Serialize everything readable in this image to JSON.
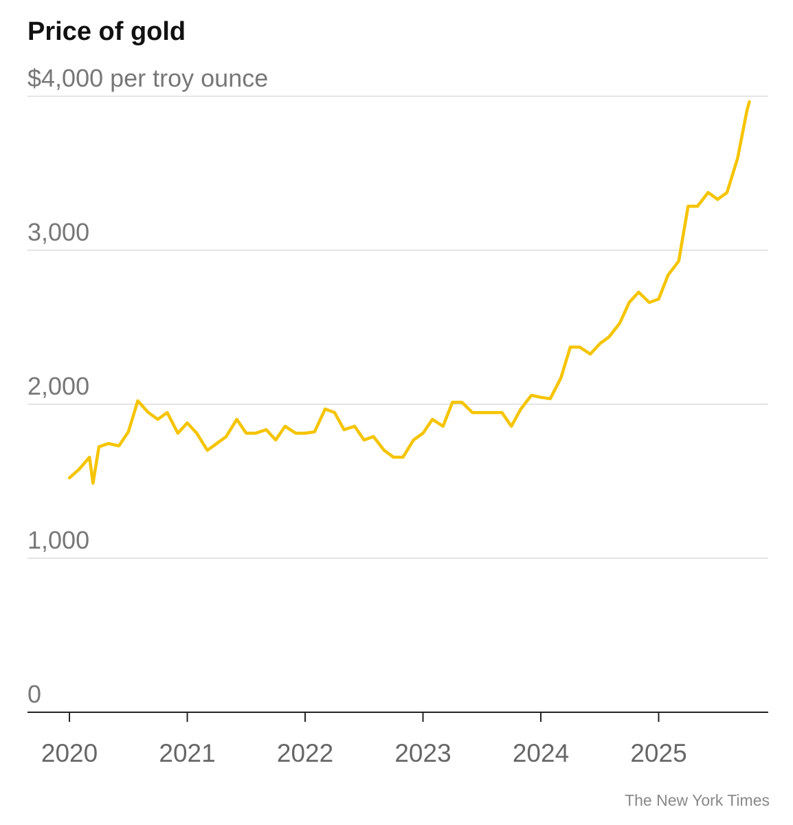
{
  "chart_data": {
    "type": "line",
    "title": "Price of gold",
    "source": "The New York Times",
    "color": "#f5c400",
    "grid": true,
    "x": [
      2020.0,
      2020.08,
      2020.17,
      2020.2,
      2020.25,
      2020.33,
      2020.42,
      2020.5,
      2020.58,
      2020.67,
      2020.75,
      2020.83,
      2020.92,
      2021.0,
      2021.08,
      2021.17,
      2021.25,
      2021.33,
      2021.42,
      2021.5,
      2021.58,
      2021.67,
      2021.75,
      2021.83,
      2021.92,
      2022.0,
      2022.08,
      2022.17,
      2022.25,
      2022.33,
      2022.42,
      2022.5,
      2022.58,
      2022.67,
      2022.75,
      2022.83,
      2022.92,
      2023.0,
      2023.08,
      2023.17,
      2023.25,
      2023.33,
      2023.42,
      2023.5,
      2023.58,
      2023.67,
      2023.75,
      2023.83,
      2023.92,
      2024.0,
      2024.08,
      2024.17,
      2024.25,
      2024.33,
      2024.42,
      2024.5,
      2024.58,
      2024.67,
      2024.75,
      2024.83,
      2024.92,
      2025.0,
      2025.08,
      2025.17,
      2025.25,
      2025.33,
      2025.42,
      2025.5,
      2025.58,
      2025.67,
      2025.75,
      2025.77
    ],
    "values": [
      1522,
      1576,
      1656,
      1487,
      1723,
      1745,
      1730,
      1821,
      2022,
      1946,
      1902,
      1946,
      1812,
      1879,
      1812,
      1701,
      1745,
      1790,
      1902,
      1812,
      1812,
      1835,
      1768,
      1857,
      1812,
      1812,
      1821,
      1969,
      1946,
      1835,
      1857,
      1768,
      1790,
      1701,
      1656,
      1656,
      1768,
      1812,
      1902,
      1857,
      2013,
      2013,
      1946,
      1946,
      1946,
      1946,
      1857,
      1969,
      2058,
      2045,
      2036,
      2170,
      2371,
      2371,
      2326,
      2393,
      2438,
      2527,
      2661,
      2728,
      2661,
      2683,
      2839,
      2929,
      3286,
      3286,
      3375,
      3330,
      3375,
      3598,
      3911,
      3964
    ],
    "xlim": [
      2019.644,
      2025.93
    ],
    "xticks": [
      2020,
      2021,
      2022,
      2023,
      2024,
      2025
    ],
    "ylim": [
      0,
      4000
    ],
    "yticks": [
      0,
      {
        "value": 1000,
        "label": "1,000"
      },
      {
        "value": 2000,
        "label": "2,000"
      },
      {
        "value": 3000,
        "label": "3,000"
      },
      {
        "value": 4000,
        "label": "$4,000 per troy ounce"
      }
    ]
  }
}
